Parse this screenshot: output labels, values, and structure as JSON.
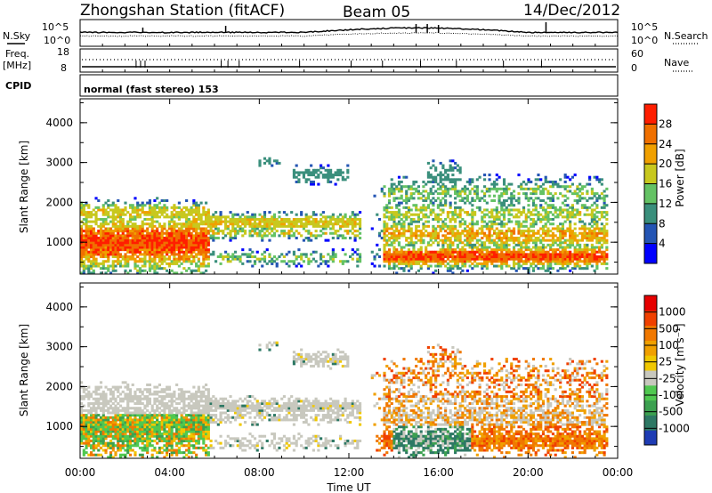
{
  "header": {
    "station": "Zhongshan Station (fitACF)",
    "beam": "Beam 05",
    "date": "14/Dec/2012"
  },
  "panels": {
    "nsky_label": "N.Sky",
    "nsearch_label": "N.Search",
    "freq_label": "Freq.",
    "freq_unit": "[MHz]",
    "nave_label": "Nave",
    "cpid_label": "CPID",
    "cpid_text": "normal (fast stereo) 153",
    "noise_ticks": [
      "10^5",
      "10^0"
    ],
    "freq_ticks": [
      "18",
      "8"
    ],
    "nave_ticks": [
      "60",
      "0"
    ]
  },
  "chart_data": [
    {
      "type": "heatmap",
      "name": "power",
      "ylabel": "Slant Range [km]",
      "yticks": [
        "4000",
        "3000",
        "2000",
        "1000"
      ],
      "ylim": [
        200,
        4600
      ],
      "colorbar_label": "Power [dB]",
      "colorbar_ticks": [
        "28",
        "24",
        "20",
        "16",
        "12",
        "8",
        "4"
      ],
      "colors": [
        "#0000ff",
        "#2455b4",
        "#3a8f7c",
        "#64c264",
        "#c8c81e",
        "#f0a000",
        "#f07000",
        "#ff1e00"
      ]
    },
    {
      "type": "heatmap",
      "name": "velocity",
      "ylabel": "Slant Range [km]",
      "yticks": [
        "4000",
        "3000",
        "2000",
        "1000"
      ],
      "ylim": [
        200,
        4600
      ],
      "colorbar_label": "Velocity [m s⁻¹]",
      "colorbar_ticks": [
        "1000",
        "500",
        "100",
        "25",
        "-25",
        "-100",
        "-500",
        "-1000"
      ],
      "colors": [
        "#1e3cb4",
        "#2d7864",
        "#3ca050",
        "#50c850",
        "#c8c8be",
        "#f0c800",
        "#f0a000",
        "#f07800",
        "#f04000",
        "#e60000"
      ]
    }
  ],
  "xaxis": {
    "label": "Time UT",
    "ticks": [
      "00:00",
      "04:00",
      "08:00",
      "12:00",
      "16:00",
      "20:00",
      "00:00"
    ]
  }
}
